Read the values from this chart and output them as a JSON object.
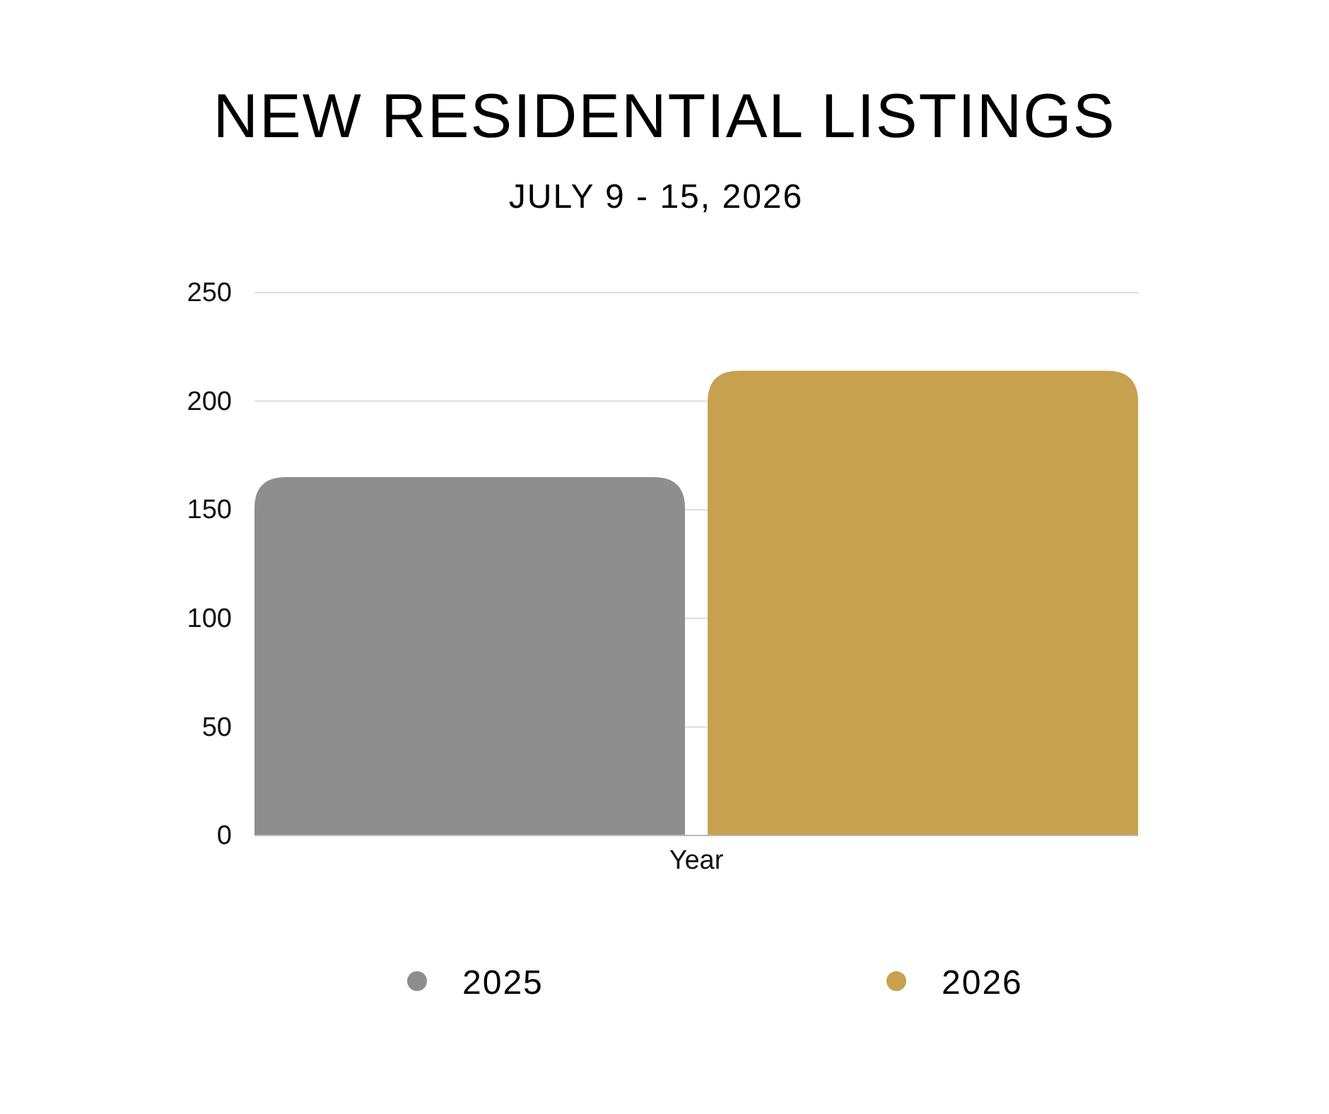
{
  "chart_data": {
    "type": "bar",
    "title": "NEW RESIDENTIAL LISTINGS",
    "subtitle": "JULY 9 - 15, 2026",
    "categories": [
      "Year"
    ],
    "series": [
      {
        "name": "2025",
        "color": "#8e8e8e",
        "values": [
          165
        ]
      },
      {
        "name": "2026",
        "color": "#c7a14e",
        "values": [
          214
        ]
      }
    ],
    "ylim": [
      0,
      250
    ],
    "yticks": [
      0,
      50,
      100,
      150,
      200,
      250
    ],
    "grid": "y",
    "legend": "bottom"
  }
}
